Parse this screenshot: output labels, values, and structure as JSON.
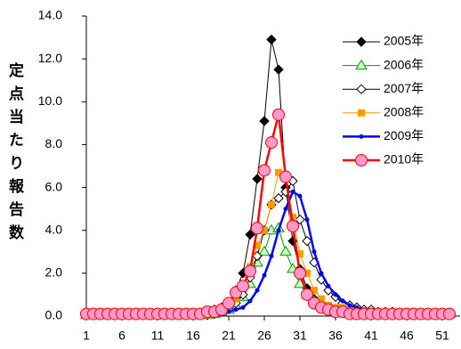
{
  "chart_data": {
    "type": "line",
    "y_label": "定点当たり報告数",
    "x": [
      1,
      2,
      3,
      4,
      5,
      6,
      7,
      8,
      9,
      10,
      11,
      12,
      13,
      14,
      15,
      16,
      17,
      18,
      19,
      20,
      21,
      22,
      23,
      24,
      25,
      26,
      27,
      28,
      29,
      30,
      31,
      32,
      33,
      34,
      35,
      36,
      37,
      38,
      39,
      40,
      41,
      42,
      43,
      44,
      45,
      46,
      47,
      48,
      49,
      50,
      51,
      52
    ],
    "xlim": [
      1,
      53.5
    ],
    "xticks": [
      1,
      6,
      11,
      16,
      21,
      26,
      31,
      36,
      41,
      46,
      51
    ],
    "ylim": [
      0,
      14
    ],
    "yticks": [
      {
        "value": 0,
        "label": "0.0"
      },
      {
        "value": 2,
        "label": "2.0"
      },
      {
        "value": 4,
        "label": "4.0"
      },
      {
        "value": 6,
        "label": "6.0"
      },
      {
        "value": 8,
        "label": "8.0"
      },
      {
        "value": 10,
        "label": "10.0"
      },
      {
        "value": 12,
        "label": "12.0"
      },
      {
        "value": 14,
        "label": "14.0"
      }
    ],
    "legend": "top-right",
    "series": [
      {
        "name": "2005年",
        "color": "#000000",
        "fill": "#000000",
        "marker": "diamond",
        "line_width": 1,
        "values": [
          0.05,
          0.05,
          0.05,
          0.05,
          0.05,
          0.05,
          0.05,
          0.05,
          0.05,
          0.05,
          0.05,
          0.05,
          0.05,
          0.05,
          0.05,
          0.1,
          0.1,
          0.2,
          0.3,
          0.4,
          0.6,
          1.2,
          2.0,
          3.8,
          6.4,
          9.1,
          12.9,
          11.5,
          6.0,
          3.5,
          2.2,
          1.3,
          0.8,
          0.5,
          0.3,
          0.2,
          0.2,
          0.1,
          0.1,
          0.1,
          0.1,
          0.1,
          0.1,
          0.1,
          0.05,
          0.05,
          0.05,
          0.05,
          0.05,
          0.05,
          0.05,
          0.05
        ]
      },
      {
        "name": "2006年",
        "color": "#009900",
        "fill": "#ccffcc",
        "marker": "triangle",
        "line_width": 1,
        "values": [
          0.05,
          0.05,
          0.05,
          0.05,
          0.05,
          0.05,
          0.05,
          0.05,
          0.05,
          0.05,
          0.05,
          0.05,
          0.05,
          0.05,
          0.05,
          0.05,
          0.05,
          0.05,
          0.1,
          0.2,
          0.3,
          0.5,
          0.9,
          1.5,
          2.5,
          3.0,
          4.0,
          4.1,
          3.0,
          2.2,
          1.5,
          1.0,
          0.7,
          0.5,
          0.3,
          0.2,
          0.2,
          0.1,
          0.1,
          0.1,
          0.1,
          0.1,
          0.1,
          0.1,
          0.1,
          0.1,
          0.1,
          0.1,
          0.1,
          0.1,
          0.1,
          0.1
        ]
      },
      {
        "name": "2007年",
        "color": "#000000",
        "fill": "#ffffff",
        "marker": "diamond",
        "line_width": 1,
        "values": [
          0.05,
          0.05,
          0.05,
          0.05,
          0.05,
          0.05,
          0.05,
          0.05,
          0.05,
          0.05,
          0.05,
          0.05,
          0.05,
          0.05,
          0.05,
          0.05,
          0.05,
          0.05,
          0.1,
          0.2,
          0.4,
          0.6,
          1.0,
          1.8,
          2.8,
          4.0,
          5.2,
          5.5,
          5.8,
          6.3,
          4.5,
          3.5,
          2.5,
          1.7,
          1.2,
          0.9,
          0.6,
          0.5,
          0.4,
          0.3,
          0.3,
          0.2,
          0.2,
          0.2,
          0.1,
          0.1,
          0.1,
          0.1,
          0.1,
          0.1,
          0.1,
          0.1
        ]
      },
      {
        "name": "2008年",
        "color": "#ff9900",
        "fill": "#ff9900",
        "marker": "square",
        "line_width": 1,
        "values": [
          0.05,
          0.05,
          0.05,
          0.05,
          0.05,
          0.05,
          0.05,
          0.05,
          0.05,
          0.05,
          0.05,
          0.05,
          0.05,
          0.05,
          0.05,
          0.05,
          0.05,
          0.05,
          0.1,
          0.2,
          0.4,
          0.8,
          1.4,
          2.3,
          3.3,
          4.0,
          5.2,
          6.7,
          6.5,
          4.6,
          2.9,
          2.0,
          1.2,
          0.8,
          0.5,
          0.4,
          0.4,
          0.3,
          0.2,
          0.2,
          0.1,
          0.1,
          0.1,
          0.1,
          0.1,
          0.1,
          0.1,
          0.1,
          0.1,
          0.1,
          0.1,
          0.1
        ]
      },
      {
        "name": "2009年",
        "color": "#0000ff",
        "fill": "#0000ff",
        "marker": "dot",
        "line_width": 2.5,
        "values": [
          0.05,
          0.05,
          0.05,
          0.05,
          0.05,
          0.05,
          0.05,
          0.05,
          0.05,
          0.05,
          0.05,
          0.05,
          0.05,
          0.05,
          0.05,
          0.05,
          0.05,
          0.05,
          0.1,
          0.1,
          0.2,
          0.3,
          0.4,
          0.7,
          1.2,
          1.9,
          2.8,
          4.0,
          5.0,
          5.8,
          5.6,
          4.5,
          3.0,
          2.0,
          1.4,
          1.0,
          0.7,
          0.5,
          0.4,
          0.3,
          0.2,
          0.2,
          0.1,
          0.1,
          0.1,
          0.1,
          0.1,
          0.1,
          0.1,
          0.1,
          0.1,
          0.1
        ]
      },
      {
        "name": "2010年",
        "color": "#ff0000",
        "fill": "#ff99cc",
        "marker": "circle",
        "line_width": 2.5,
        "values": [
          0.1,
          0.1,
          0.1,
          0.1,
          0.1,
          0.1,
          0.1,
          0.1,
          0.1,
          0.1,
          0.1,
          0.1,
          0.1,
          0.1,
          0.1,
          0.1,
          0.1,
          0.2,
          0.2,
          0.3,
          0.6,
          1.1,
          1.4,
          2.1,
          4.1,
          6.8,
          8.1,
          9.4,
          6.5,
          4.2,
          2.0,
          1.0,
          0.6,
          0.4,
          0.3,
          0.2,
          0.2,
          0.1,
          0.1,
          0.1,
          0.1,
          0.1,
          0.1,
          0.1,
          0.1,
          0.1,
          0.1,
          0.1,
          0.1,
          0.1,
          0.1,
          0.1
        ]
      }
    ]
  }
}
